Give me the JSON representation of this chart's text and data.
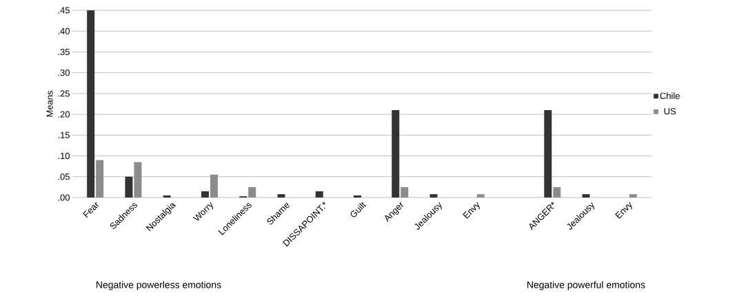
{
  "chart_data": {
    "type": "bar",
    "ylabel": "Means",
    "categories": [
      "Fear",
      "Sadness",
      "Nostalgia",
      "Worry",
      "Loneliness",
      "Shame",
      "DISSAPOINT.*",
      "Guilt",
      "Anger",
      "Jealousy",
      "Envy",
      null,
      "ANGER*",
      "Jealousy",
      "Envy"
    ],
    "series": [
      {
        "name": "Chile",
        "color": "#333333",
        "values": [
          0.45,
          0.05,
          0.005,
          0.015,
          0.003,
          0.008,
          0.015,
          0.005,
          0.21,
          0.008,
          0,
          null,
          0.21,
          0.008,
          0
        ]
      },
      {
        "name": "US",
        "color": "#8c8c8c",
        "values": [
          0.09,
          0.085,
          0,
          0.055,
          0.025,
          0,
          0,
          0,
          0.025,
          0,
          0.008,
          null,
          0.025,
          0,
          0.008
        ]
      }
    ],
    "ylim": [
      0,
      0.45
    ],
    "yticks": [
      {
        "value": 0,
        "label": ".00"
      },
      {
        "value": 0.05,
        "label": ".05"
      },
      {
        "value": 0.1,
        "label": ".10"
      },
      {
        "value": 0.15,
        "label": ".15"
      },
      {
        "value": 0.2,
        "label": ".20"
      },
      {
        "value": 0.25,
        "label": ".25"
      },
      {
        "value": 0.3,
        "label": ".30"
      },
      {
        "value": 0.35,
        "label": ".35"
      },
      {
        "value": 0.4,
        "label": ".40"
      },
      {
        "value": 0.45,
        "label": ".45"
      }
    ],
    "grid": "y",
    "legend": "right",
    "annotations": [
      "Negative powerless emotions",
      "Negative powerful emotions"
    ]
  }
}
